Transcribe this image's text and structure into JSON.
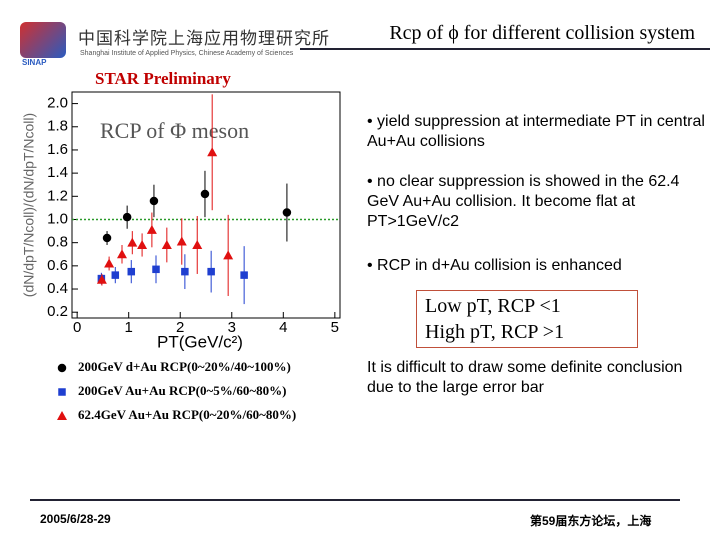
{
  "header": {
    "title": "Rcp of ϕ for different collision system",
    "logo_cn": "中国科学院上海应用物理研究所",
    "logo_en": "Shanghai Institute of Applied Physics, Chinese Academy of Sciences",
    "logo_abbr": "SINAP"
  },
  "bullets": [
    "• yield suppression at intermediate PT in central Au+Au collisions",
    "• no clear suppression is showed in the 62.4 GeV Au+Au collision. It become flat at PT>1GeV/c2",
    "• RCP in d+Au collision is enhanced"
  ],
  "box": [
    "Low pT, RCP <1",
    "High pT, RCP >1"
  ],
  "note": "It is difficult to draw some definite conclusion due to the large error bar",
  "footer": {
    "date": "2005/6/28-29",
    "event": "第59届东方论坛，上海"
  },
  "chart_data": {
    "type": "scatter",
    "title": "RCP of Φ meson",
    "annotation": "STAR Preliminary",
    "x_label": "PT(GeV/c²)",
    "y_label": "(dN/dpT/Ncoll)/(dN/dpT/Ncoll)",
    "xlim": [
      -0.1,
      5.1
    ],
    "xticks": [
      0,
      1,
      2,
      3,
      4,
      5
    ],
    "ylim": [
      0.15,
      2.1
    ],
    "yticks": [
      0.2,
      0.4,
      0.6,
      0.8,
      {
        "value": 1.0,
        "label": "1.0"
      },
      1.2,
      1.4,
      1.6,
      1.8,
      {
        "value": 2.0,
        "label": "2.0"
      }
    ],
    "hline": 1,
    "hline_color": "#2a9a2a",
    "series": [
      {
        "name": "200GeV d+Au RCP(0~20%/40~100%)",
        "color": "#000000",
        "marker": "circle",
        "x": [
          0.58,
          0.97,
          1.49,
          2.48,
          4.07
        ],
        "values": [
          0.84,
          1.02,
          1.16,
          1.22,
          1.06
        ],
        "errors": [
          0.06,
          0.1,
          0.14,
          0.2,
          0.25
        ]
      },
      {
        "name": "200GeV Au+Au RCP(0~5%/60~80%)",
        "color": "#1f3fd0",
        "marker": "square",
        "x": [
          0.47,
          0.74,
          1.05,
          1.53,
          2.09,
          2.6,
          3.24
        ],
        "values": [
          0.49,
          0.52,
          0.55,
          0.57,
          0.55,
          0.55,
          0.52
        ],
        "errors": [
          0.05,
          0.07,
          0.1,
          0.12,
          0.15,
          0.18,
          0.25
        ]
      },
      {
        "name": "62.4GeV Au+Au RCP(0~20%/60~80%)",
        "color": "#e01010",
        "marker": "triangle",
        "x": [
          0.48,
          0.62,
          0.87,
          1.07,
          1.26,
          1.45,
          1.74,
          2.03,
          2.33,
          2.62,
          2.93
        ],
        "values": [
          0.48,
          0.62,
          0.7,
          0.8,
          0.78,
          0.91,
          0.78,
          0.81,
          0.78,
          1.58,
          0.69
        ],
        "errors": [
          0.05,
          0.06,
          0.08,
          0.1,
          0.1,
          0.15,
          0.15,
          0.2,
          0.25,
          0.5,
          0.35
        ]
      }
    ]
  }
}
